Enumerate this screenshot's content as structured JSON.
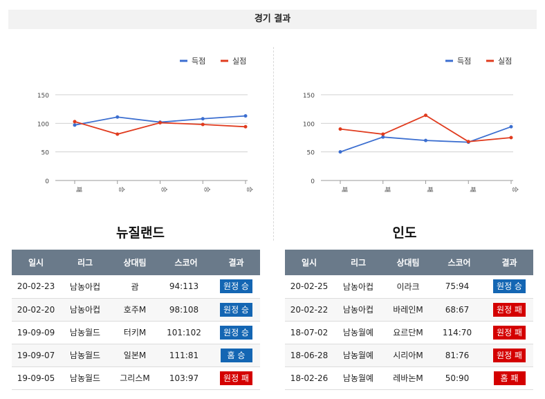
{
  "title": "경기 결과",
  "colors": {
    "scored": "#3b6ed0",
    "conceded": "#e03b1e",
    "win": "#1466b3",
    "loss": "#d40000"
  },
  "chart_data": [
    {
      "type": "line",
      "legend": "top-right",
      "grid": true,
      "ylim": [
        0,
        150
      ],
      "yticks": [
        0,
        50,
        100,
        150
      ],
      "categories": [
        "패",
        "승",
        "승",
        "승",
        "승"
      ],
      "series": [
        {
          "name": "득점",
          "values": [
            97,
            111,
            102,
            108,
            113
          ]
        },
        {
          "name": "실점",
          "values": [
            103,
            81,
            101,
            98,
            94
          ]
        }
      ]
    },
    {
      "type": "line",
      "legend": "top-right",
      "grid": true,
      "ylim": [
        0,
        150
      ],
      "yticks": [
        0,
        50,
        100,
        150
      ],
      "categories": [
        "패",
        "패",
        "패",
        "패",
        "승"
      ],
      "series": [
        {
          "name": "득점",
          "values": [
            50,
            76,
            70,
            67,
            94
          ]
        },
        {
          "name": "실점",
          "values": [
            90,
            81,
            114,
            68,
            75
          ]
        }
      ]
    }
  ],
  "teams": [
    {
      "name": "뉴질랜드",
      "headers": [
        "일시",
        "리그",
        "상대팀",
        "스코어",
        "결과"
      ],
      "rows": [
        {
          "date": "20-02-23",
          "league": "남농아컵",
          "opponent": "괌",
          "score": "94:113",
          "result": "원정 승",
          "type": "win"
        },
        {
          "date": "20-02-20",
          "league": "남농아컵",
          "opponent": "호주M",
          "score": "98:108",
          "result": "원정 승",
          "type": "win"
        },
        {
          "date": "19-09-09",
          "league": "남농월드",
          "opponent": "터키M",
          "score": "101:102",
          "result": "원정 승",
          "type": "win"
        },
        {
          "date": "19-09-07",
          "league": "남농월드",
          "opponent": "일본M",
          "score": "111:81",
          "result": "홈 승",
          "type": "win"
        },
        {
          "date": "19-09-05",
          "league": "남농월드",
          "opponent": "그리스M",
          "score": "103:97",
          "result": "원정 패",
          "type": "loss"
        }
      ]
    },
    {
      "name": "인도",
      "headers": [
        "일시",
        "리그",
        "상대팀",
        "스코어",
        "결과"
      ],
      "rows": [
        {
          "date": "20-02-25",
          "league": "남농아컵",
          "opponent": "이라크",
          "score": "75:94",
          "result": "원정 승",
          "type": "win"
        },
        {
          "date": "20-02-22",
          "league": "남농아컵",
          "opponent": "바레인M",
          "score": "68:67",
          "result": "원정 패",
          "type": "loss"
        },
        {
          "date": "18-07-02",
          "league": "남농월예",
          "opponent": "요르단M",
          "score": "114:70",
          "result": "원정 패",
          "type": "loss"
        },
        {
          "date": "18-06-28",
          "league": "남농월예",
          "opponent": "시리아M",
          "score": "81:76",
          "result": "원정 패",
          "type": "loss"
        },
        {
          "date": "18-02-26",
          "league": "남농월예",
          "opponent": "레바논M",
          "score": "50:90",
          "result": "홈 패",
          "type": "loss"
        }
      ]
    }
  ]
}
